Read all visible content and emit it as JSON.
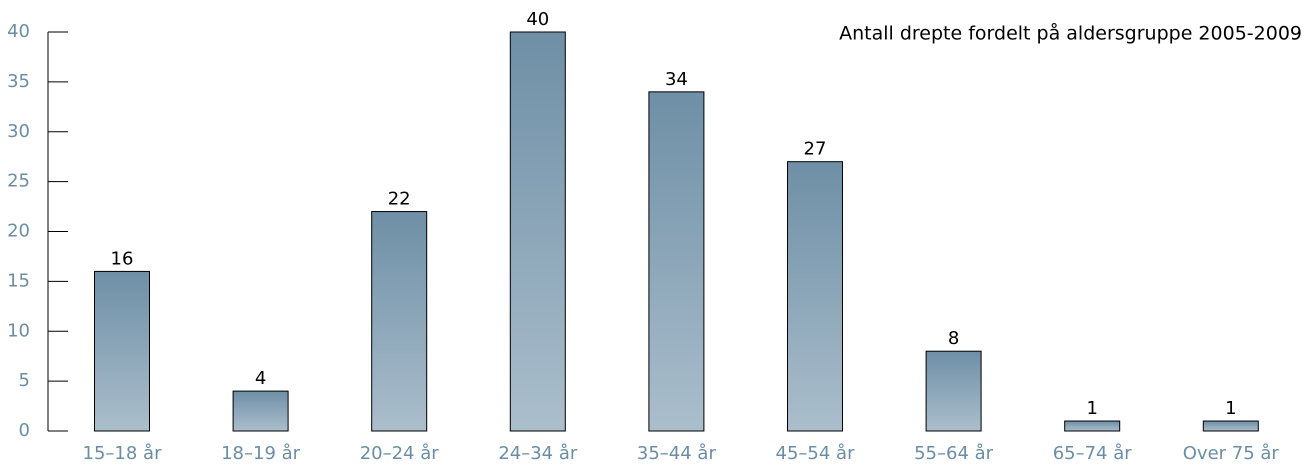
{
  "chart_data": {
    "type": "bar",
    "title": "Antall drepte fordelt på aldersgruppe 2005-2009",
    "categories": [
      "15–18 år",
      "18–19 år",
      "20–24 år",
      "24–34 år",
      "35–44 år",
      "45–54 år",
      "55–64 år",
      "65–74 år",
      "Over 75 år"
    ],
    "values": [
      16,
      4,
      22,
      40,
      34,
      27,
      8,
      1,
      1
    ],
    "color": "#8aa3b7",
    "ylim": [
      0,
      40
    ],
    "yticks": [
      0,
      5,
      10,
      15,
      20,
      25,
      30,
      35,
      40
    ]
  }
}
